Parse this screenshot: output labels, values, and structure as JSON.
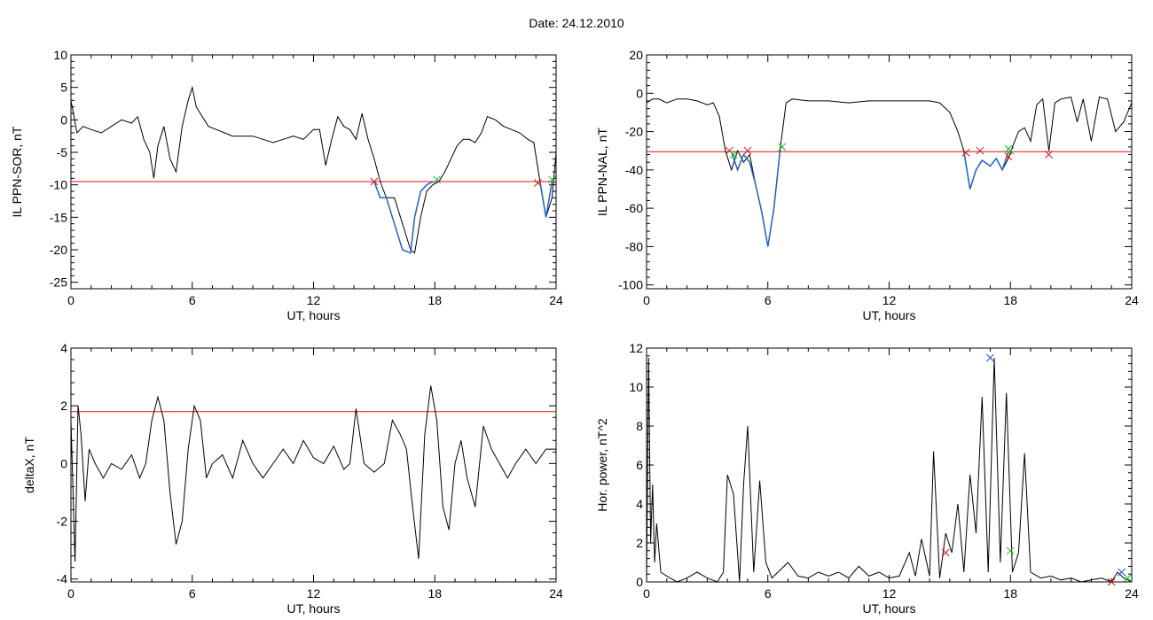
{
  "page_title": "Date:  24.12.2010",
  "chart_data": [
    {
      "type": "line",
      "xlabel": "UT, hours",
      "ylabel": "IL PPN-SOR, nT",
      "xlim": [
        0,
        24
      ],
      "ylim": [
        -26,
        10
      ],
      "xticks": [
        0,
        6,
        12,
        18,
        24
      ],
      "yticks": [
        10,
        5,
        0,
        -5,
        -10,
        -15,
        -20,
        -25
      ],
      "threshold": -9.5,
      "series": [
        {
          "color": "#000000",
          "x": [
            0,
            0.3,
            0.6,
            1,
            1.5,
            2,
            2.5,
            3,
            3.3,
            3.6,
            3.9,
            4.1,
            4.3,
            4.6,
            4.9,
            5.2,
            5.5,
            5.8,
            6.0,
            6.2,
            6.5,
            6.8,
            7.2,
            7.6,
            8,
            8.5,
            9,
            9.5,
            10,
            10.5,
            11,
            11.5,
            12,
            12.3,
            12.6,
            12.9,
            13.2,
            13.5,
            13.8,
            14.1,
            14.4,
            14.7,
            15.0,
            15.3,
            15.6,
            16,
            16.4,
            16.8,
            17.0,
            17.3,
            17.6,
            17.9,
            18.2,
            18.5,
            18.8,
            19.1,
            19.4,
            19.7,
            20.0,
            20.3,
            20.6,
            21,
            21.4,
            21.8,
            22.2,
            22.6,
            22.9,
            23.2,
            23.5,
            23.8,
            24
          ],
          "y": [
            3,
            -2,
            -1,
            -1.5,
            -2,
            -1,
            0,
            -0.5,
            0.5,
            -3,
            -5,
            -9,
            -4,
            -1,
            -6,
            -8,
            -1,
            3,
            5,
            2,
            0.5,
            -1,
            -1.5,
            -2,
            -2.5,
            -2.5,
            -2.5,
            -3,
            -3.5,
            -3,
            -2.5,
            -3,
            -1.5,
            -1.5,
            -7,
            -3,
            0.5,
            -1,
            -1.5,
            -3,
            1,
            -3,
            -6,
            -9.5,
            -12,
            -12,
            -16,
            -20,
            -20.5,
            -15,
            -11,
            -10,
            -9.5,
            -8,
            -6,
            -4,
            -3,
            -3,
            -3.5,
            -2,
            0.5,
            0,
            -1,
            -1.5,
            -2,
            -3,
            -3.5,
            -9.5,
            -15,
            -12,
            -5
          ]
        },
        {
          "color": "#1e64c8",
          "x": [
            15.0,
            15.3,
            15.6,
            16,
            16.4,
            16.8,
            17.0,
            17.3,
            17.6,
            17.9
          ],
          "y": [
            -9.5,
            -12,
            -12,
            -16,
            -20,
            -20.5,
            -15,
            -11,
            -10,
            -9.5
          ]
        },
        {
          "color": "#1e64c8",
          "x": [
            23.2,
            23.5,
            23.8
          ],
          "y": [
            -9.5,
            -15,
            -9.5
          ]
        }
      ],
      "markers": {
        "red": {
          "x": [
            15.0,
            23.1
          ],
          "y": [
            -9.5,
            -9.7
          ]
        },
        "green": {
          "x": [
            18.1,
            23.8
          ],
          "y": [
            -9.2,
            -9.2
          ]
        }
      }
    },
    {
      "type": "line",
      "xlabel": "UT, hours",
      "ylabel": "IL PPN-NAL, nT",
      "xlim": [
        0,
        24
      ],
      "ylim": [
        -102,
        20
      ],
      "xticks": [
        0,
        6,
        12,
        18,
        24
      ],
      "yticks": [
        20,
        0,
        -20,
        -40,
        -60,
        -80,
        -100
      ],
      "threshold": -30.5,
      "series": [
        {
          "color": "#000000",
          "x": [
            0,
            0.3,
            0.6,
            1,
            1.5,
            2,
            2.5,
            3,
            3.3,
            3.6,
            3.9,
            4.2,
            4.5,
            4.8,
            5.1,
            5.4,
            5.7,
            6.0,
            6.3,
            6.6,
            6.9,
            7.2,
            8,
            9,
            10,
            11,
            12,
            13,
            14,
            14.5,
            15,
            15.4,
            15.7,
            16.0,
            16.3,
            16.6,
            17.0,
            17.3,
            17.6,
            17.9,
            18.1,
            18.4,
            18.7,
            19.0,
            19.3,
            19.6,
            19.9,
            20.2,
            20.5,
            21,
            21.3,
            21.6,
            22,
            22.4,
            22.8,
            23.2,
            23.6,
            24
          ],
          "y": [
            -5,
            -3,
            -3,
            -5,
            -3,
            -3,
            -4,
            -6,
            -5,
            -12,
            -30,
            -40,
            -30,
            -36,
            -32,
            -48,
            -62,
            -80,
            -60,
            -30,
            -5,
            -3,
            -4,
            -4,
            -5,
            -4,
            -4,
            -4,
            -4,
            -5,
            -10,
            -20,
            -30,
            -50,
            -40,
            -35,
            -38,
            -34,
            -40,
            -34,
            -28,
            -20,
            -18,
            -25,
            -6,
            -3,
            -30,
            -5,
            -3,
            -2,
            -15,
            -3,
            -25,
            -2,
            -3,
            -20,
            -15,
            -5
          ]
        },
        {
          "color": "#1e64c8",
          "x": [
            4.2,
            4.5,
            4.8,
            5.1,
            5.4,
            5.7,
            6.0,
            6.3,
            6.6
          ],
          "y": [
            -30.5,
            -40,
            -32,
            -36,
            -48,
            -62,
            -80,
            -60,
            -30.5
          ]
        },
        {
          "color": "#1e64c8",
          "x": [
            15.7,
            16.0,
            16.3,
            16.6,
            17.0,
            17.3,
            17.6,
            17.9
          ],
          "y": [
            -30.5,
            -50,
            -40,
            -35,
            -38,
            -34,
            -40,
            -30.5
          ]
        }
      ],
      "markers": {
        "red": {
          "x": [
            4.1,
            5.0,
            15.8,
            16.5,
            17.9,
            19.9
          ],
          "y": [
            -30,
            -30,
            -31,
            -30,
            -33,
            -32
          ]
        },
        "green": {
          "x": [
            4.3,
            6.7,
            17.9,
            18.0
          ],
          "y": [
            -32,
            -28,
            -29,
            -30
          ]
        }
      }
    },
    {
      "type": "line",
      "xlabel": "UT, hours",
      "ylabel": "deltaX, nT",
      "xlim": [
        0,
        24
      ],
      "ylim": [
        -4.1,
        4
      ],
      "xticks": [
        0,
        6,
        12,
        18,
        24
      ],
      "yticks": [
        4,
        2,
        0,
        -2,
        -4
      ],
      "threshold": 1.8,
      "series": [
        {
          "color": "#000000",
          "x": [
            0,
            0.2,
            0.35,
            0.5,
            0.7,
            0.9,
            1.2,
            1.6,
            2,
            2.5,
            3,
            3.4,
            3.7,
            4.0,
            4.3,
            4.6,
            4.9,
            5.2,
            5.5,
            5.8,
            6.1,
            6.4,
            6.7,
            7,
            7.5,
            8,
            8.5,
            9,
            9.5,
            10,
            10.5,
            11,
            11.5,
            12,
            12.5,
            13,
            13.5,
            13.8,
            14.1,
            14.5,
            15,
            15.5,
            15.9,
            16.3,
            16.6,
            16.9,
            17.2,
            17.5,
            17.8,
            18.1,
            18.4,
            18.7,
            19.0,
            19.3,
            19.6,
            20,
            20.4,
            20.8,
            21.2,
            21.6,
            22,
            22.5,
            23,
            23.5,
            24
          ],
          "y": [
            1.5,
            -3.4,
            2,
            1,
            -1.3,
            0.5,
            0,
            -0.5,
            0,
            -0.2,
            0.3,
            -0.5,
            0,
            1.5,
            2.3,
            1.5,
            -1,
            -2.8,
            -2,
            0.5,
            2,
            1.5,
            -0.5,
            0,
            0.3,
            -0.5,
            0.8,
            0,
            -0.5,
            0,
            0.5,
            0,
            0.8,
            0.2,
            0,
            0.6,
            -0.2,
            0,
            1.9,
            0,
            -0.3,
            0,
            1.5,
            1,
            0.5,
            -1.5,
            -3.3,
            1,
            2.7,
            1.5,
            -1.5,
            -2.3,
            0,
            0.8,
            -0.5,
            -1.5,
            1.3,
            0.5,
            0,
            -0.5,
            0,
            0.5,
            0,
            0.5,
            0.5
          ]
        }
      ],
      "markers": {}
    },
    {
      "type": "line",
      "xlabel": "UT, hours",
      "ylabel": "Hor. power, nT^2",
      "xlim": [
        0,
        24
      ],
      "ylim": [
        0,
        12
      ],
      "xticks": [
        0,
        6,
        12,
        18,
        24
      ],
      "yticks": [
        12,
        10,
        8,
        6,
        4,
        2,
        0
      ],
      "series": [
        {
          "color": "#000000",
          "x": [
            0,
            0.1,
            0.2,
            0.3,
            0.4,
            0.5,
            0.7,
            1,
            1.5,
            2,
            2.5,
            3,
            3.5,
            3.8,
            4.0,
            4.3,
            4.6,
            4.8,
            5.0,
            5.3,
            5.6,
            5.9,
            6.2,
            6.5,
            7,
            7.5,
            8,
            8.5,
            9,
            9.5,
            10,
            10.5,
            11,
            11.5,
            12,
            12.5,
            13,
            13.3,
            13.6,
            14.0,
            14.2,
            14.5,
            14.8,
            15.1,
            15.4,
            15.7,
            16.0,
            16.3,
            16.6,
            16.9,
            17.2,
            17.5,
            17.8,
            18.1,
            18.4,
            18.7,
            19.0,
            19.5,
            20,
            20.5,
            21,
            21.5,
            22,
            22.5,
            23,
            23.3,
            23.6,
            24
          ],
          "y": [
            0,
            11.5,
            2,
            5,
            1,
            3,
            0.5,
            0.3,
            0,
            0.2,
            0.5,
            0.2,
            0,
            0.5,
            5.5,
            4.5,
            0,
            5,
            8,
            0.5,
            5.2,
            1,
            0.2,
            0.5,
            1,
            0.3,
            0.2,
            0.5,
            0.3,
            0.5,
            0.2,
            0.8,
            0.3,
            0.5,
            0.2,
            0.3,
            1.5,
            0.3,
            2.2,
            0.3,
            6.7,
            0.2,
            2.5,
            1.5,
            4,
            0.5,
            5.5,
            2.5,
            9.5,
            0.5,
            11.5,
            1,
            9.7,
            0.5,
            1.5,
            6.6,
            0.5,
            0.2,
            0.3,
            0.1,
            0.2,
            0,
            0.1,
            0.2,
            0,
            0.5,
            0.2,
            0
          ]
        }
      ],
      "markers": {
        "red": {
          "x": [
            14.8,
            23.0
          ],
          "y": [
            1.5,
            0
          ]
        },
        "green": {
          "x": [
            18.0,
            23.8
          ],
          "y": [
            1.6,
            0.2
          ]
        },
        "blue": {
          "x": [
            17.0,
            23.5
          ],
          "y": [
            11.5,
            0.5
          ]
        }
      }
    }
  ]
}
